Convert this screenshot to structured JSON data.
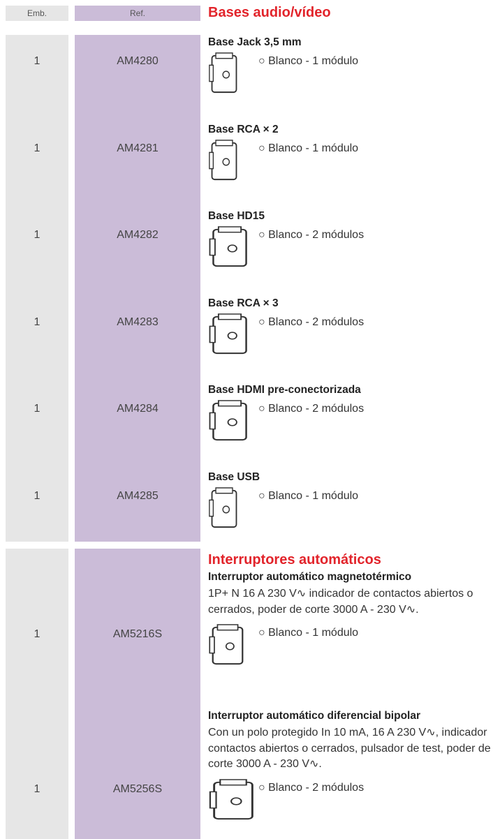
{
  "header": {
    "emb": "Emb.",
    "ref": "Ref.",
    "title": "Bases audio/vídeo"
  },
  "sections": [
    {
      "items": [
        {
          "emb": "1",
          "ref": "AM4280",
          "name": "Base Jack 3,5 mm",
          "finish": "○ Blanco - 1 módulo"
        },
        {
          "emb": "1",
          "ref": "AM4281",
          "name": "Base RCA × 2",
          "finish": "○ Blanco - 1 módulo"
        },
        {
          "emb": "1",
          "ref": "AM4282",
          "name": "Base HD15",
          "finish": "○ Blanco - 2 módulos"
        },
        {
          "emb": "1",
          "ref": "AM4283",
          "name": "Base RCA × 3",
          "finish": "○ Blanco - 2 módulos"
        },
        {
          "emb": "1",
          "ref": "AM4284",
          "name": "Base HDMI pre-conectorizada",
          "finish": "○ Blanco - 2 módulos"
        },
        {
          "emb": "1",
          "ref": "AM4285",
          "name": "Base USB",
          "finish": "○ Blanco - 1 módulo"
        }
      ]
    },
    {
      "title": "Interruptores automáticos",
      "items": [
        {
          "emb": "1",
          "ref": "AM5216S",
          "name": "Interruptor automático magnetotérmico",
          "description": "1P+ N 16 A 230 V∿ indicador de contactos abiertos o cerrados, poder de corte 3000 A - 230 V∿.",
          "finish": "○ Blanco - 1 módulo"
        },
        {
          "emb": "1",
          "ref": "AM5256S",
          "name": "Interruptor automático diferencial bipolar",
          "description": "Con un polo protegido In 10 mA, 16 A 230 V∿, indicador contactos abiertos o cerrados, pulsador de test, poder de corte 3000 A - 230 V∿.",
          "finish": "○ Blanco - 2 módulos"
        }
      ]
    }
  ]
}
